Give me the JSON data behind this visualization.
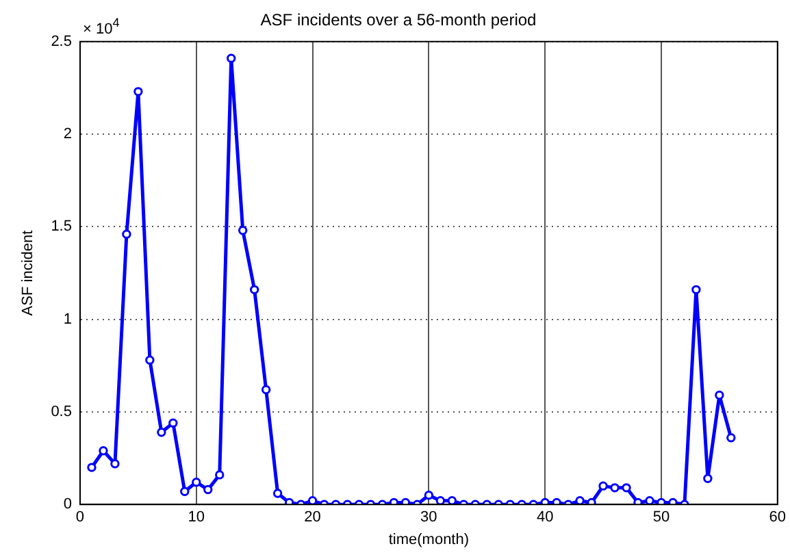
{
  "chart_data": {
    "type": "line",
    "title": "ASF incidents over a 56-month period",
    "xlabel": "time(month)",
    "ylabel": "ASF incident",
    "annotations": [
      "× 10$^{4}$"
    ],
    "x": [
      1,
      2,
      3,
      4,
      5,
      6,
      7,
      8,
      9,
      10,
      11,
      12,
      13,
      14,
      15,
      16,
      17,
      18,
      19,
      20,
      21,
      22,
      23,
      24,
      25,
      26,
      27,
      28,
      29,
      30,
      31,
      32,
      33,
      34,
      35,
      36,
      37,
      38,
      39,
      40,
      41,
      42,
      43,
      44,
      45,
      46,
      47,
      48,
      49,
      50,
      51,
      52,
      53,
      54,
      55,
      56
    ],
    "series": [
      {
        "color": "#0000ff",
        "values": [
          0.2,
          0.29,
          0.22,
          1.46,
          2.23,
          0.78,
          0.39,
          0.44,
          0.07,
          0.12,
          0.08,
          0.16,
          2.41,
          1.48,
          1.16,
          0.62,
          0.06,
          0.01,
          0.0,
          0.02,
          0.0,
          0.0,
          0.0,
          0.0,
          0.0,
          0.0,
          0.01,
          0.01,
          0.0,
          0.05,
          0.02,
          0.02,
          0.0,
          0.0,
          0.0,
          0.0,
          0.0,
          0.0,
          0.0,
          0.01,
          0.01,
          0.0,
          0.02,
          0.01,
          0.1,
          0.09,
          0.09,
          0.01,
          0.02,
          0.01,
          0.01,
          0.0,
          1.16,
          0.14,
          0.59,
          0.36
        ]
      }
    ],
    "xlim": [
      0,
      60
    ],
    "xticks": [
      0,
      10,
      20,
      30,
      40,
      50,
      60
    ],
    "ylim": [
      0,
      2.5
    ],
    "yticks": [
      0,
      0.5,
      1,
      1.5,
      2,
      2.5
    ],
    "grid": true,
    "legend": false,
    "marker": "circle",
    "line_style": "solid"
  }
}
